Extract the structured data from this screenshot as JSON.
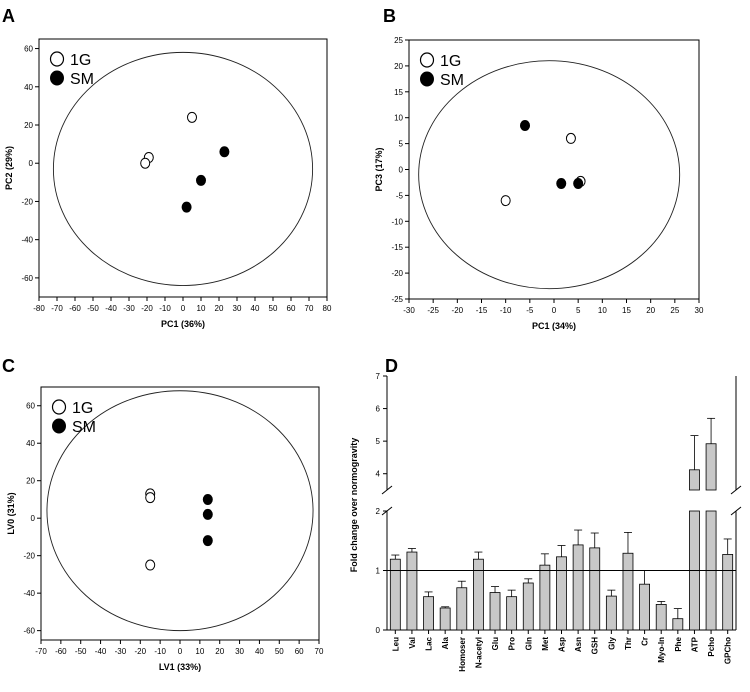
{
  "chart_data": [
    {
      "panel": "A",
      "type": "scatter",
      "xlabel": "PC1 (36%)",
      "ylabel": "PC2 (29%)",
      "xlim": [
        -80,
        80
      ],
      "ylim": [
        -70,
        65
      ],
      "xticks": [
        -80,
        -70,
        -60,
        -50,
        -40,
        -30,
        -20,
        -10,
        0,
        10,
        20,
        30,
        40,
        50,
        60,
        70,
        80
      ],
      "yticks": [
        -60,
        -40,
        -20,
        0,
        20,
        40,
        60
      ],
      "ellipse": {
        "cx": 0,
        "cy": -3,
        "rx": 72,
        "ry": 61
      },
      "legend": [
        "1G",
        "SM"
      ],
      "series": [
        {
          "name": "1G",
          "points": [
            [
              5,
              24
            ],
            [
              -19,
              3
            ],
            [
              -21,
              0
            ]
          ]
        },
        {
          "name": "SM",
          "points": [
            [
              23,
              6
            ],
            [
              10,
              -9
            ],
            [
              2,
              -23
            ]
          ]
        }
      ]
    },
    {
      "panel": "B",
      "type": "scatter",
      "xlabel": "PC1 (34%)",
      "ylabel": "PC3 (17%)",
      "xlim": [
        -30,
        30
      ],
      "ylim": [
        -25,
        25
      ],
      "xticks": [
        -30,
        -25,
        -20,
        -15,
        -10,
        -5,
        0,
        5,
        10,
        15,
        20,
        25,
        30
      ],
      "yticks": [
        -25,
        -20,
        -15,
        -10,
        -5,
        0,
        5,
        10,
        15,
        20,
        25
      ],
      "ellipse": {
        "cx": -1,
        "cy": -1,
        "rx": 27,
        "ry": 22
      },
      "legend": [
        "1G",
        "SM"
      ],
      "series": [
        {
          "name": "1G",
          "points": [
            [
              3.5,
              6
            ],
            [
              -10,
              -6
            ],
            [
              5.5,
              -2.3
            ]
          ]
        },
        {
          "name": "SM",
          "points": [
            [
              -6,
              8.5
            ],
            [
              1.5,
              -2.7
            ],
            [
              5,
              -2.7
            ]
          ]
        }
      ]
    },
    {
      "panel": "C",
      "type": "scatter",
      "xlabel": "LV1 (33%)",
      "ylabel": "LV0 (31%)",
      "xlim": [
        -70,
        70
      ],
      "ylim": [
        -65,
        70
      ],
      "xticks": [
        -70,
        -60,
        -50,
        -40,
        -30,
        -20,
        -10,
        0,
        10,
        20,
        30,
        40,
        50,
        60,
        70
      ],
      "yticks": [
        -60,
        -40,
        -20,
        0,
        20,
        40,
        60
      ],
      "ellipse": {
        "cx": 0,
        "cy": 4,
        "rx": 67,
        "ry": 64
      },
      "legend": [
        "1G",
        "SM"
      ],
      "series": [
        {
          "name": "1G",
          "points": [
            [
              -15,
              13
            ],
            [
              -15,
              11
            ],
            [
              -15,
              -25
            ]
          ]
        },
        {
          "name": "SM",
          "points": [
            [
              14,
              10
            ],
            [
              14,
              2
            ],
            [
              14,
              -12
            ]
          ]
        }
      ]
    },
    {
      "panel": "D",
      "type": "bar",
      "ylabel": "Fold change over normogravity",
      "lower_ylim": [
        0,
        2
      ],
      "upper_ylim": [
        3.5,
        7
      ],
      "lower_yticks": [
        "0",
        "1",
        "2"
      ],
      "upper_yticks": [
        "4",
        "5",
        "6",
        "7"
      ],
      "reference_line": 1,
      "categories": [
        "Leu",
        "Val",
        "Lac",
        "Ala",
        "Homoser",
        "N-acetyl",
        "Glu",
        "Pro",
        "Gln",
        "Met",
        "Asp",
        "Asn",
        "GSH",
        "Gly",
        "Thr",
        "Cr",
        "Myo-In",
        "Phe",
        "ATP",
        "Pcho",
        "GPCho"
      ],
      "values": [
        1.19,
        1.31,
        0.56,
        0.37,
        0.71,
        1.19,
        0.63,
        0.56,
        0.79,
        1.09,
        1.23,
        1.43,
        1.38,
        0.57,
        1.29,
        0.77,
        0.43,
        0.19,
        4.12,
        4.92,
        1.27
      ],
      "errors": [
        0.07,
        0.06,
        0.08,
        0.02,
        0.11,
        0.12,
        0.1,
        0.11,
        0.07,
        0.19,
        0.19,
        0.25,
        0.25,
        0.1,
        0.35,
        0.23,
        0.05,
        0.17,
        1.05,
        0.78,
        0.26
      ]
    }
  ]
}
